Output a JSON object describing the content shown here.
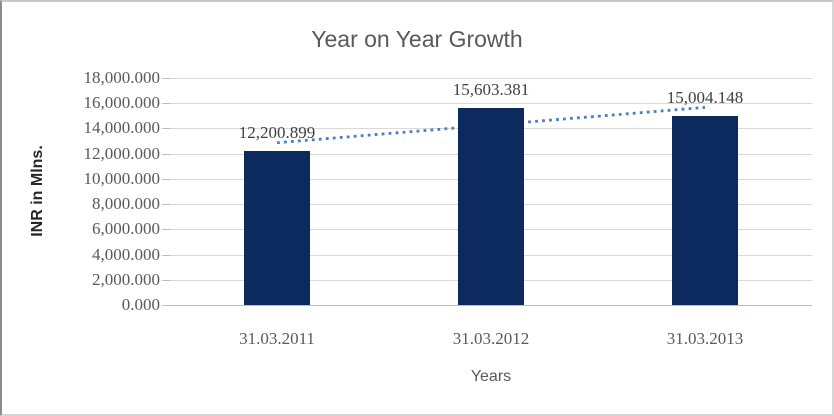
{
  "chart_data": {
    "type": "bar",
    "title": "Year on Year Growth",
    "xlabel": "Years",
    "ylabel": "INR in Mlns.",
    "categories": [
      "31.03.2011",
      "31.03.2012",
      "31.03.2013"
    ],
    "values": [
      12200.899,
      15603.381,
      15004.148
    ],
    "data_labels": [
      "12,200.899",
      "15,603.381",
      "15,004.148"
    ],
    "ylim": [
      0,
      18000
    ],
    "ytick_step": 2000,
    "yticks": [
      {
        "value": 0,
        "label": "0.000"
      },
      {
        "value": 2000,
        "label": "2,000.000"
      },
      {
        "value": 4000,
        "label": "4,000.000"
      },
      {
        "value": 6000,
        "label": "6,000.000"
      },
      {
        "value": 8000,
        "label": "8,000.000"
      },
      {
        "value": 10000,
        "label": "10,000.000"
      },
      {
        "value": 12000,
        "label": "12,000.000"
      },
      {
        "value": 14000,
        "label": "14,000.000"
      },
      {
        "value": 16000,
        "label": "16,000.000"
      },
      {
        "value": 18000,
        "label": "18,000.000"
      }
    ],
    "grid": true,
    "legend": "none",
    "trendline": {
      "type": "linear",
      "style": "dotted",
      "start_value": 12868,
      "end_value": 15671
    },
    "colors": {
      "bar": "#0d2a5e",
      "trendline": "#4a7ebb",
      "title_text": "#595959",
      "axis_text": "#595959",
      "data_label_text": "#3f3f3f",
      "gridline": "#d9d9d9",
      "axis_line": "#bdbdbd"
    }
  }
}
